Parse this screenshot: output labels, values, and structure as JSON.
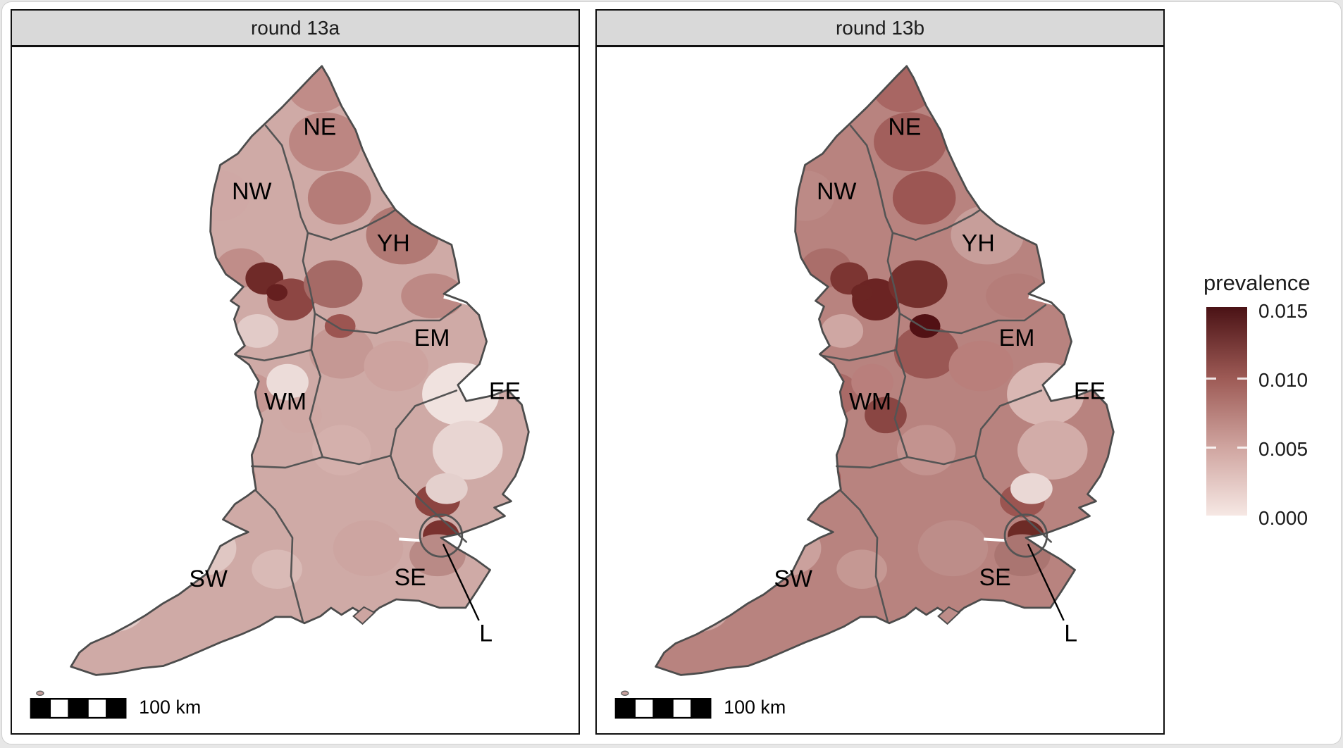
{
  "figure": {
    "panels": [
      {
        "title": "round 13a",
        "region_labels": {
          "NE": "NE",
          "NW": "NW",
          "YH": "YH",
          "EM": "EM",
          "EE": "EE",
          "WM": "WM",
          "SW": "SW",
          "SE": "SE",
          "L": "L"
        },
        "scale_bar_label": "100 km"
      },
      {
        "title": "round 13b",
        "region_labels": {
          "NE": "NE",
          "NW": "NW",
          "YH": "YH",
          "EM": "EM",
          "EE": "EE",
          "WM": "WM",
          "SW": "SW",
          "SE": "SE",
          "L": "L"
        },
        "scale_bar_label": "100 km"
      }
    ],
    "legend": {
      "title": "prevalence",
      "tick_labels": [
        "0.015",
        "0.010",
        "0.005",
        "0.000"
      ],
      "gradient_stops": {
        "v0000": "#f6e8e4",
        "v0005": "#cfa49f",
        "v0010": "#9d5a55",
        "v0015": "#4a1215"
      }
    }
  },
  "map_data": {
    "type": "choropleth",
    "geography": "England, sub-regions coloured within 9 regions (NE, NW, YH, EM, WM, EE, L, SE, SW)",
    "variable": "prevalence",
    "scale_domain": [
      0.0,
      0.015
    ],
    "rounds": [
      {
        "label": "round 13a",
        "approx_mean_prevalence_by_region": {
          "NE": 0.006,
          "NW": 0.006,
          "YH": 0.007,
          "EM": 0.005,
          "WM": 0.003,
          "EE": 0.002,
          "L": 0.01,
          "SE": 0.004,
          "SW": 0.002
        },
        "darkest_areas": [
          "east Lancashire (NW), approx 0.013",
          "London core, approx 0.012"
        ]
      },
      {
        "label": "round 13b",
        "approx_mean_prevalence_by_region": {
          "NE": 0.009,
          "NW": 0.008,
          "YH": 0.007,
          "EM": 0.007,
          "WM": 0.007,
          "EE": 0.004,
          "L": 0.01,
          "SE": 0.005,
          "SW": 0.004
        },
        "darkest_areas": [
          "Greater Manchester / West Yorkshire border, approx 0.015",
          "London core, approx 0.011"
        ]
      }
    ],
    "shading": {
      "base_fill": [
        "#cfaaa6",
        "#b8837f"
      ],
      "blob_colors_round_13a": [
        "#d8b6b3",
        "#cfa8a5",
        "#c08c88",
        "#bc8682",
        "#b57c78",
        "#c08d89",
        "#6f2a28",
        "#8d4643",
        "#a56a66",
        "#b17974",
        "#bd8985",
        "#e2cbc8",
        "#c59894",
        "#cda39f",
        "#c69793",
        "#ecdcd9",
        "#cfa8a4",
        "#f0e2df",
        "#e8d5d2",
        "#d4b0ac",
        "#8c4440",
        "#7a322f",
        "#cda5a1",
        "#b98a86",
        "#c09089",
        "#e0c7c3",
        "#e3ccc9",
        "#d9bab6",
        "#651f1f",
        "#9c5551",
        "#e4d0cd"
      ],
      "blob_colors_round_13b": [
        "#c49a97",
        "#bc8a86",
        "#a86663",
        "#a25f5c",
        "#9c5653",
        "#aa6e6a",
        "#7c3532",
        "#6b2423",
        "#74302d",
        "#c79e9a",
        "#b57d79",
        "#cfa7a3",
        "#9a5754",
        "#b97f7b",
        "#a96a67",
        "#b97f7c",
        "#8a4643",
        "#d9b7b3",
        "#d2aca8",
        "#c3938f",
        "#9b5551",
        "#6d2b26",
        "#bd8d89",
        "#aa7571",
        "#a05d5a",
        "#cba19d",
        "#cfa7a4",
        "#c59893",
        "#6b2523",
        "#521114",
        "#ead8d5"
      ],
      "boundary_color": "#545454",
      "outline_color": "#4c4c4c"
    }
  }
}
